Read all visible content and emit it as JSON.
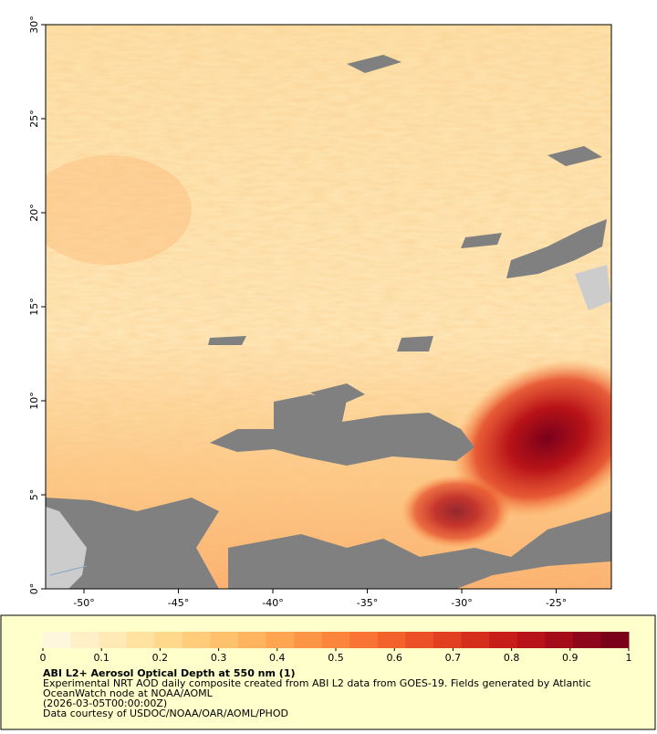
{
  "map": {
    "xlim": [
      -52.03,
      -22.08
    ],
    "ylim": [
      0,
      30
    ],
    "xticks": [
      {
        "value": -50,
        "label": "-50°"
      },
      {
        "value": -45,
        "label": "-45°"
      },
      {
        "value": -40,
        "label": "-40°"
      },
      {
        "value": -35,
        "label": "-35°"
      },
      {
        "value": -30,
        "label": "-30°"
      },
      {
        "value": -25,
        "label": "-25°"
      }
    ],
    "yticks": [
      {
        "value": 0,
        "label": "0°"
      },
      {
        "value": 5,
        "label": "5°"
      },
      {
        "value": 10,
        "label": "10°"
      },
      {
        "value": 15,
        "label": "15°"
      },
      {
        "value": 20,
        "label": "20°"
      },
      {
        "value": 25,
        "label": "25°"
      },
      {
        "value": 30,
        "label": "30°"
      }
    ]
  },
  "colorbar": {
    "lim": [
      0,
      1
    ],
    "ticks": [
      0,
      0.1,
      0.2,
      0.3,
      0.4,
      0.5,
      0.6,
      0.7,
      0.8,
      0.9,
      1
    ],
    "colors": [
      "#fff7dd",
      "#fff0c8",
      "#ffe9b4",
      "#ffe1a0",
      "#ffd88c",
      "#ffcd7a",
      "#ffc16c",
      "#feb35e",
      "#fea552",
      "#fd9546",
      "#fc853c",
      "#f97434",
      "#f4622c",
      "#ec5026",
      "#e23f20",
      "#d62e1c",
      "#c81e1a",
      "#b81318",
      "#a40c1a",
      "#8e061b",
      "#7a001a"
    ]
  },
  "caption": {
    "title": "ABI L2+ Aerosol Optical Depth at 550 nm (1)",
    "lines": [
      "Experimental NRT AOD daily composite created from ABI L2 data from GOES-19. Fields generated by Atlantic",
      "OceanWatch node at NOAA/AOML",
      "(2026-03-05T00:00:00Z)",
      "Data courtesy of USDOC/NOAA/OAR/AOML/PHOD"
    ]
  }
}
